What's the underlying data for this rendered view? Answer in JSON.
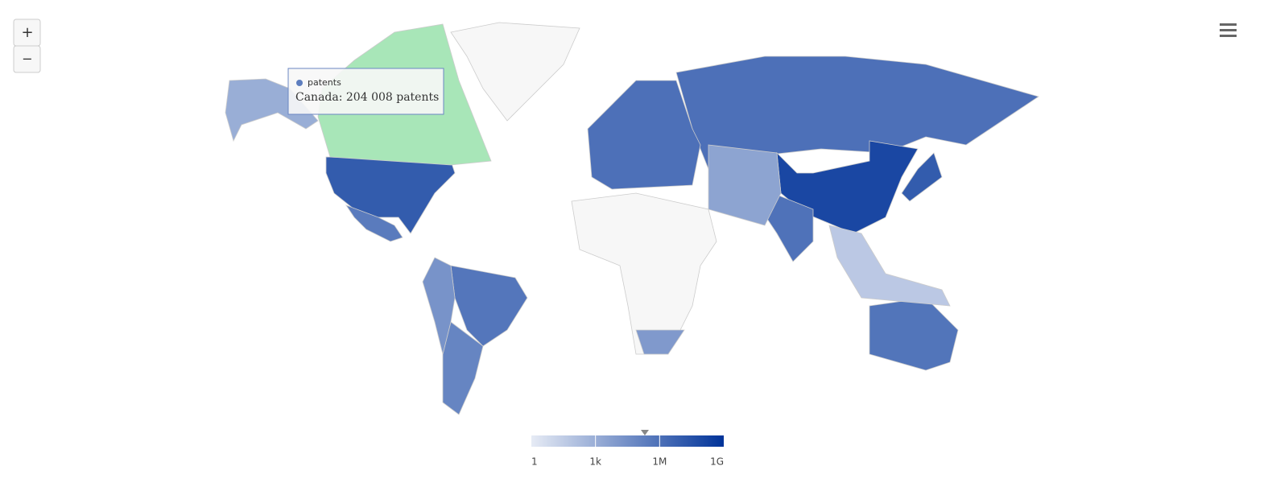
{
  "ui": {
    "zoom_in": "+",
    "zoom_out": "−"
  },
  "chart_data": {
    "type": "map",
    "series": [
      {
        "name": "patents",
        "values": [
          10000000,
          1000000,
          100000000,
          10000000,
          800000,
          600000,
          500000,
          100000,
          300000,
          1000000,
          3000,
          20000,
          50,
          10000,
          1000
        ]
      }
    ],
    "tooltip": {
      "text": "Canada: 204 008 patents",
      "value": 204008
    },
    "hover_color": "#a8e6b8",
    "null_color": "#f7f7f7",
    "color_axis": {
      "log": true,
      "min_color": "#e6ebf5",
      "max_color": "#003399",
      "lim": [
        1,
        1000000000
      ],
      "ticks": [
        1,
        {
          "value": 1000,
          "label": "1k"
        },
        {
          "value": 1000000,
          "label": "1M"
        },
        {
          "value": 1000000000,
          "label": "1G"
        }
      ]
    }
  }
}
